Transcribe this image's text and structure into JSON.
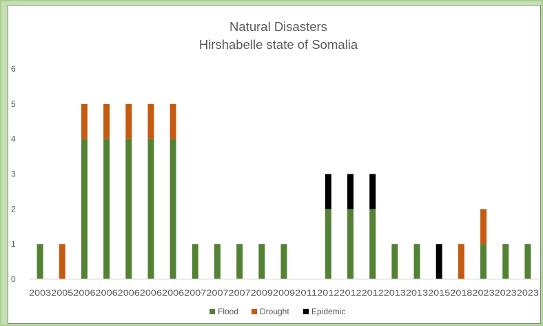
{
  "colors": {
    "flood": "#548235",
    "drought": "#c55a11",
    "epidemic": "#000000",
    "axis": "#d9d9d9",
    "text": "#595959"
  },
  "chart_data": {
    "type": "bar",
    "stacked": true,
    "title": "Natural Disasters",
    "subtitle": "Hirshabelle state of Somalia",
    "xlabel": "",
    "ylabel": "",
    "ylim": [
      0,
      6
    ],
    "yticks": [
      0,
      1,
      2,
      3,
      4,
      5,
      6
    ],
    "grid": false,
    "legend_position": "bottom",
    "categories": [
      "2003",
      "2005",
      "2006",
      "2006",
      "2006",
      "2006",
      "2006",
      "2007",
      "2007",
      "2007",
      "2009",
      "2009",
      "2011",
      "2012",
      "2012",
      "2012",
      "2013",
      "2013",
      "2015",
      "2018",
      "2023",
      "2023",
      "2023"
    ],
    "series": [
      {
        "name": "Flood",
        "color": "#548235",
        "values": [
          1,
          0,
          4,
          4,
          4,
          4,
          4,
          1,
          1,
          1,
          1,
          1,
          0,
          2,
          2,
          2,
          1,
          1,
          0,
          0,
          1,
          1,
          1
        ]
      },
      {
        "name": "Drought",
        "color": "#c55a11",
        "values": [
          0,
          1,
          1,
          1,
          1,
          1,
          1,
          0,
          0,
          0,
          0,
          0,
          0,
          0,
          0,
          0,
          0,
          0,
          0,
          1,
          1,
          0,
          0
        ]
      },
      {
        "name": "Epidemic",
        "color": "#000000",
        "values": [
          0,
          0,
          0,
          0,
          0,
          0,
          0,
          0,
          0,
          0,
          0,
          0,
          0,
          1,
          1,
          1,
          0,
          0,
          1,
          0,
          0,
          0,
          0
        ]
      }
    ]
  }
}
